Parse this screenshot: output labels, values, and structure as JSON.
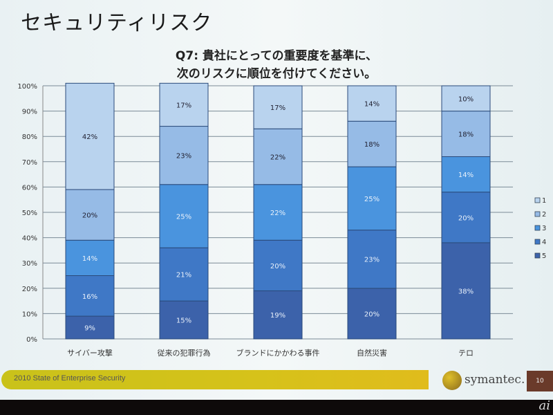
{
  "slide": {
    "title": "セキュリティリスク",
    "footer": "2010 State of Enterprise Security",
    "brand": "symantec.",
    "page_number": "10",
    "watermark": "ai"
  },
  "chart_data": {
    "type": "bar",
    "stacked": true,
    "title_lines": [
      "Q7: 貴社にとっての重要度を基準に、",
      "次のリスクに順位を付けてください。"
    ],
    "categories": [
      "サイバー攻撃",
      "従来の犯罪行為",
      "ブランドにかかわる事件",
      "自然災害",
      "テロ"
    ],
    "series": [
      {
        "name": "5",
        "color": "#3c62aa",
        "values": [
          9,
          15,
          19,
          20,
          38
        ]
      },
      {
        "name": "4",
        "color": "#3f78c6",
        "values": [
          16,
          21,
          20,
          23,
          20
        ]
      },
      {
        "name": "3",
        "color": "#4a94de",
        "values": [
          14,
          25,
          22,
          25,
          14
        ]
      },
      {
        "name": "2",
        "color": "#96bbe6",
        "values": [
          20,
          23,
          22,
          18,
          18
        ]
      },
      {
        "name": "1",
        "color": "#b9d3ee",
        "values": [
          42,
          17,
          17,
          14,
          10
        ]
      }
    ],
    "yticks": [
      "0%",
      "10%",
      "20%",
      "30%",
      "40%",
      "50%",
      "60%",
      "70%",
      "80%",
      "90%",
      "100%"
    ],
    "ylim": [
      0,
      100
    ],
    "grid": true,
    "legend_placement": "right"
  }
}
